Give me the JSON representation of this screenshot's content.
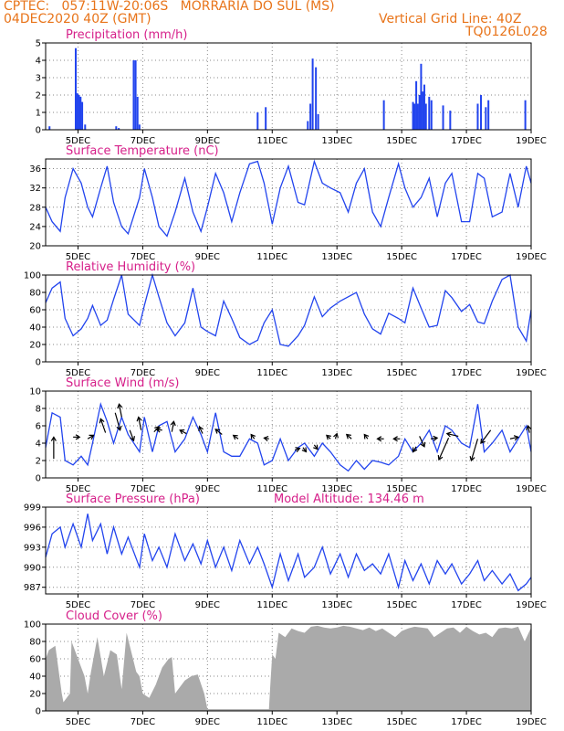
{
  "header": {
    "left1": "CPTEC:   057:11W-20:06S   MORRARIA DO SUL (MS)",
    "left2": "04DEC2020 40Z (GMT)",
    "right1": "Vertical Grid Line: 40Z",
    "right2": "TQ0126L028"
  },
  "x_axis": {
    "range": [
      4.0,
      19.0
    ],
    "ticks": [
      {
        "x": 5,
        "label": "5DEC"
      },
      {
        "x": 7,
        "label": "7DEC"
      },
      {
        "x": 9,
        "label": "9DEC"
      },
      {
        "x": 11,
        "label": "11DEC"
      },
      {
        "x": 13,
        "label": "13DEC"
      },
      {
        "x": 15,
        "label": "15DEC"
      },
      {
        "x": 17,
        "label": "17DEC"
      },
      {
        "x": 19,
        "label": "19DEC"
      }
    ]
  },
  "colors": {
    "line": "#2244ee",
    "cloud": "#aaaaaa",
    "title": "#d6208a",
    "header": "#e8741a"
  },
  "chart_data": [
    {
      "id": "precip",
      "type": "bar",
      "title": "Precipitation (mm/h)",
      "ylim": [
        0,
        5
      ],
      "yticks": [
        0,
        1,
        2,
        3,
        4,
        5
      ],
      "x": [
        4.12,
        4.93,
        4.98,
        5.03,
        5.08,
        5.13,
        5.22,
        6.18,
        6.26,
        6.72,
        6.78,
        6.84,
        6.9,
        10.55,
        10.8,
        12.1,
        12.18,
        12.25,
        12.35,
        12.42,
        14.45,
        15.35,
        15.4,
        15.45,
        15.5,
        15.55,
        15.6,
        15.65,
        15.7,
        15.75,
        15.85,
        15.92,
        16.28,
        16.5,
        17.35,
        17.45,
        17.6,
        17.68,
        18.82
      ],
      "values": [
        0.2,
        4.7,
        2.1,
        2.0,
        1.9,
        1.6,
        0.3,
        0.2,
        0.1,
        4.0,
        4.0,
        1.9,
        0.3,
        1.0,
        1.3,
        0.5,
        1.5,
        4.1,
        3.6,
        0.9,
        1.7,
        1.6,
        1.5,
        2.8,
        1.5,
        2.0,
        3.8,
        2.2,
        2.6,
        1.5,
        1.9,
        1.7,
        1.4,
        1.1,
        1.5,
        2.0,
        1.3,
        1.7,
        1.7
      ]
    },
    {
      "id": "temp",
      "type": "line",
      "title": "Surface Temperature (nC)",
      "ylim": [
        20,
        38
      ],
      "yticks": [
        20,
        24,
        28,
        32,
        36
      ],
      "x": [
        4.0,
        4.2,
        4.45,
        4.6,
        4.85,
        5.1,
        5.3,
        5.45,
        5.7,
        5.9,
        6.1,
        6.35,
        6.55,
        6.9,
        7.05,
        7.3,
        7.5,
        7.75,
        8.0,
        8.3,
        8.55,
        8.8,
        9.0,
        9.25,
        9.5,
        9.75,
        10.0,
        10.3,
        10.55,
        10.75,
        11.0,
        11.25,
        11.5,
        11.8,
        12.0,
        12.3,
        12.55,
        12.8,
        13.1,
        13.35,
        13.6,
        13.85,
        14.1,
        14.35,
        14.6,
        14.9,
        15.1,
        15.35,
        15.6,
        15.85,
        16.1,
        16.35,
        16.55,
        16.85,
        17.1,
        17.35,
        17.55,
        17.8,
        18.1,
        18.35,
        18.6,
        18.85,
        19.0
      ],
      "values": [
        28,
        25,
        23,
        30,
        36,
        33,
        28,
        26,
        32,
        36.5,
        29,
        24,
        22.5,
        30,
        36,
        30,
        24,
        22,
        27,
        34,
        27,
        23,
        28,
        35,
        31,
        25,
        31,
        37,
        37.5,
        33,
        24.5,
        32,
        36.5,
        29,
        28.5,
        37.5,
        33,
        32,
        31,
        27,
        33,
        36,
        27,
        24,
        30,
        37,
        32,
        28,
        30,
        34,
        26,
        33,
        35,
        25,
        25,
        35,
        34,
        26,
        27,
        35,
        28,
        36.5,
        33
      ]
    },
    {
      "id": "rh",
      "type": "line",
      "title": "Relative Humidity (%)",
      "ylim": [
        0,
        100
      ],
      "yticks": [
        0,
        20,
        40,
        60,
        80,
        100
      ],
      "x": [
        4.0,
        4.2,
        4.45,
        4.6,
        4.85,
        5.1,
        5.3,
        5.45,
        5.7,
        5.9,
        6.1,
        6.35,
        6.55,
        6.9,
        7.05,
        7.3,
        7.5,
        7.75,
        8.0,
        8.3,
        8.55,
        8.8,
        9.0,
        9.25,
        9.5,
        9.75,
        10.0,
        10.3,
        10.55,
        10.75,
        11.0,
        11.25,
        11.5,
        11.8,
        12.0,
        12.3,
        12.55,
        12.8,
        13.1,
        13.35,
        13.6,
        13.85,
        14.1,
        14.35,
        14.6,
        14.9,
        15.1,
        15.35,
        15.6,
        15.85,
        16.1,
        16.35,
        16.55,
        16.85,
        17.1,
        17.35,
        17.55,
        17.8,
        18.1,
        18.35,
        18.6,
        18.85,
        19.0
      ],
      "values": [
        68,
        85,
        92,
        50,
        30,
        38,
        50,
        65,
        42,
        48,
        72,
        100,
        55,
        42,
        65,
        100,
        75,
        45,
        30,
        45,
        85,
        40,
        35,
        30,
        70,
        50,
        28,
        20,
        25,
        45,
        60,
        20,
        18,
        30,
        42,
        75,
        52,
        62,
        70,
        75,
        80,
        55,
        38,
        32,
        56,
        50,
        45,
        85,
        62,
        40,
        42,
        82,
        74,
        58,
        66,
        46,
        44,
        70,
        95,
        100,
        40,
        24,
        60
      ]
    },
    {
      "id": "wind",
      "type": "line",
      "title": "Surface Wind (m/s)",
      "ylim": [
        0,
        10
      ],
      "yticks": [
        0,
        2,
        4,
        6,
        8,
        10
      ],
      "x": [
        4.0,
        4.2,
        4.45,
        4.6,
        4.85,
        5.1,
        5.3,
        5.45,
        5.7,
        5.9,
        6.1,
        6.35,
        6.55,
        6.9,
        7.05,
        7.3,
        7.5,
        7.75,
        8.0,
        8.3,
        8.55,
        8.8,
        9.0,
        9.25,
        9.5,
        9.75,
        10.0,
        10.3,
        10.55,
        10.75,
        11.0,
        11.25,
        11.5,
        11.8,
        12.0,
        12.3,
        12.55,
        12.8,
        13.1,
        13.35,
        13.6,
        13.85,
        14.1,
        14.35,
        14.6,
        14.9,
        15.1,
        15.35,
        15.6,
        15.85,
        16.1,
        16.35,
        16.55,
        16.85,
        17.1,
        17.35,
        17.55,
        17.8,
        18.1,
        18.35,
        18.6,
        18.85,
        19.0
      ],
      "values": [
        3.5,
        7.5,
        7.0,
        2.0,
        1.5,
        2.5,
        1.5,
        4.0,
        8.5,
        6.5,
        4.0,
        7.0,
        5.0,
        3.0,
        7.0,
        3.0,
        6.0,
        6.5,
        3.0,
        4.5,
        7.0,
        5.0,
        3.0,
        7.5,
        3.0,
        2.5,
        2.5,
        4.5,
        4.0,
        1.5,
        2.0,
        4.5,
        2.0,
        3.5,
        4.0,
        2.5,
        4.0,
        3.0,
        1.5,
        0.8,
        2.0,
        1.0,
        2.0,
        1.8,
        1.5,
        2.5,
        4.5,
        3.0,
        4.0,
        5.5,
        3.0,
        6.0,
        5.5,
        4.0,
        3.5,
        8.5,
        3.0,
        4.0,
        5.5,
        3.0,
        4.5,
        6.0,
        3.0
      ]
    },
    {
      "id": "pres",
      "type": "line",
      "title": "Surface Pressure (hPa)",
      "annotation": "Model Altitude: 134.46 m",
      "ylim": [
        986,
        999
      ],
      "yticks": [
        987,
        990,
        993,
        996,
        999
      ],
      "x": [
        4.0,
        4.2,
        4.45,
        4.6,
        4.85,
        5.1,
        5.3,
        5.45,
        5.7,
        5.9,
        6.1,
        6.35,
        6.55,
        6.9,
        7.05,
        7.3,
        7.5,
        7.75,
        8.0,
        8.3,
        8.55,
        8.8,
        9.0,
        9.25,
        9.5,
        9.75,
        10.0,
        10.3,
        10.55,
        10.75,
        11.0,
        11.25,
        11.5,
        11.8,
        12.0,
        12.3,
        12.55,
        12.8,
        13.1,
        13.35,
        13.6,
        13.85,
        14.1,
        14.35,
        14.6,
        14.9,
        15.1,
        15.35,
        15.6,
        15.85,
        16.1,
        16.35,
        16.55,
        16.85,
        17.1,
        17.35,
        17.55,
        17.8,
        18.1,
        18.35,
        18.6,
        18.85,
        19.0
      ],
      "values": [
        991.5,
        995,
        996,
        993,
        996.5,
        993,
        998,
        994,
        996.5,
        992,
        996,
        992,
        994.5,
        990,
        995,
        991,
        993,
        990,
        995,
        991,
        993.5,
        990.5,
        994,
        990,
        993,
        989.5,
        994,
        990.5,
        993,
        990.5,
        987,
        992,
        988,
        992,
        988.5,
        990,
        993,
        989,
        992,
        988.5,
        992,
        989.5,
        990.5,
        989,
        992,
        987,
        991,
        988,
        990.5,
        987.5,
        991,
        989,
        990.5,
        987.5,
        989,
        991,
        988,
        989.5,
        987.5,
        989,
        986.5,
        987.5,
        988.5
      ]
    },
    {
      "id": "cloud",
      "type": "area",
      "title": "Cloud Cover (%)",
      "ylim": [
        0,
        100
      ],
      "yticks": [
        0,
        20,
        40,
        60,
        80,
        100
      ],
      "x": [
        4.0,
        4.1,
        4.3,
        4.5,
        4.55,
        4.75,
        4.8,
        5.0,
        5.2,
        5.3,
        5.4,
        5.6,
        5.8,
        6.0,
        6.2,
        6.35,
        6.5,
        6.6,
        6.8,
        6.9,
        7.0,
        7.2,
        7.4,
        7.6,
        7.8,
        7.9,
        8.0,
        8.1,
        8.3,
        8.5,
        8.7,
        8.9,
        9.0,
        10.0,
        10.9,
        10.95,
        11.0,
        11.1,
        11.2,
        11.4,
        11.6,
        11.8,
        12.0,
        12.2,
        12.4,
        12.6,
        12.8,
        13.0,
        13.2,
        13.4,
        13.6,
        13.8,
        14.0,
        14.2,
        14.4,
        14.6,
        14.8,
        15.0,
        15.2,
        15.4,
        15.6,
        15.8,
        16.0,
        16.2,
        16.4,
        16.6,
        16.8,
        17.0,
        17.2,
        17.4,
        17.6,
        17.8,
        18.0,
        18.2,
        18.4,
        18.6,
        18.8,
        19.0
      ],
      "values": [
        60,
        70,
        75,
        20,
        10,
        20,
        80,
        60,
        40,
        20,
        45,
        85,
        40,
        70,
        65,
        25,
        90,
        75,
        45,
        40,
        20,
        15,
        30,
        50,
        60,
        62,
        20,
        25,
        35,
        40,
        42,
        20,
        2,
        2,
        2,
        35,
        65,
        60,
        90,
        85,
        95,
        92,
        90,
        97,
        98,
        96,
        95,
        96,
        98,
        97,
        95,
        93,
        96,
        92,
        95,
        90,
        85,
        92,
        95,
        97,
        96,
        95,
        85,
        90,
        95,
        96,
        90,
        97,
        92,
        88,
        90,
        85,
        95,
        96,
        95,
        97,
        80,
        96
      ]
    }
  ],
  "wind_barbs": [
    {
      "x": 4.25,
      "y": 2.2,
      "dx": 0,
      "dy": 2.5
    },
    {
      "x": 4.85,
      "y": 4.7,
      "dx": 0.2,
      "dy": 0
    },
    {
      "x": 5.3,
      "y": 4.5,
      "dx": 0.18,
      "dy": 0.4
    },
    {
      "x": 5.85,
      "y": 5.2,
      "dx": -0.15,
      "dy": 1.6
    },
    {
      "x": 6.15,
      "y": 7.5,
      "dx": 0.15,
      "dy": -2.0
    },
    {
      "x": 6.35,
      "y": 7.0,
      "dx": -0.08,
      "dy": 1.5
    },
    {
      "x": 6.6,
      "y": 5.5,
      "dx": 0.12,
      "dy": -1.2
    },
    {
      "x": 6.95,
      "y": 5.5,
      "dx": -0.08,
      "dy": 1.5
    },
    {
      "x": 7.35,
      "y": 5.3,
      "dx": 0.15,
      "dy": 0.6
    },
    {
      "x": 7.6,
      "y": 5.5,
      "dx": -0.18,
      "dy": 0.1
    },
    {
      "x": 7.9,
      "y": 5.3,
      "dx": 0.06,
      "dy": 1.2
    },
    {
      "x": 8.35,
      "y": 5.1,
      "dx": -0.2,
      "dy": 0.4
    },
    {
      "x": 8.85,
      "y": 5.1,
      "dx": -0.1,
      "dy": 0.8
    },
    {
      "x": 9.45,
      "y": 5.0,
      "dx": -0.2,
      "dy": 0.6
    },
    {
      "x": 9.95,
      "y": 4.5,
      "dx": -0.15,
      "dy": 0.4
    },
    {
      "x": 10.45,
      "y": 4.5,
      "dx": -0.1,
      "dy": 0.5
    },
    {
      "x": 10.9,
      "y": 4.5,
      "dx": -0.15,
      "dy": 0.1
    },
    {
      "x": 11.7,
      "y": 3.2,
      "dx": 0.15,
      "dy": 0.2
    },
    {
      "x": 11.95,
      "y": 3.5,
      "dx": 0.1,
      "dy": -0.5
    },
    {
      "x": 12.3,
      "y": 3.8,
      "dx": 0.1,
      "dy": -0.5
    },
    {
      "x": 12.8,
      "y": 4.5,
      "dx": -0.12,
      "dy": 0.4
    },
    {
      "x": 12.95,
      "y": 4.5,
      "dx": 0.05,
      "dy": 0.6
    },
    {
      "x": 13.45,
      "y": 4.5,
      "dx": -0.15,
      "dy": 0.5
    },
    {
      "x": 13.95,
      "y": 4.5,
      "dx": -0.1,
      "dy": 0.5
    },
    {
      "x": 14.45,
      "y": 4.5,
      "dx": -0.2,
      "dy": 0.0
    },
    {
      "x": 14.95,
      "y": 4.5,
      "dx": -0.2,
      "dy": 0.0
    },
    {
      "x": 15.45,
      "y": 3.6,
      "dx": -0.1,
      "dy": -0.6
    },
    {
      "x": 15.55,
      "y": 4.8,
      "dx": 0.15,
      "dy": -1.2
    },
    {
      "x": 15.9,
      "y": 4.5,
      "dx": 0.2,
      "dy": 0.1
    },
    {
      "x": 16.45,
      "y": 4.6,
      "dx": -0.3,
      "dy": -2.5
    },
    {
      "x": 16.75,
      "y": 4.8,
      "dx": -0.35,
      "dy": 0.3
    },
    {
      "x": 17.35,
      "y": 4.5,
      "dx": -0.2,
      "dy": -2.5
    },
    {
      "x": 17.75,
      "y": 5.5,
      "dx": -0.3,
      "dy": -1.5
    },
    {
      "x": 18.35,
      "y": 4.5,
      "dx": 0.25,
      "dy": 0.2
    },
    {
      "x": 18.95,
      "y": 5.2,
      "dx": -0.05,
      "dy": 0.8
    }
  ]
}
